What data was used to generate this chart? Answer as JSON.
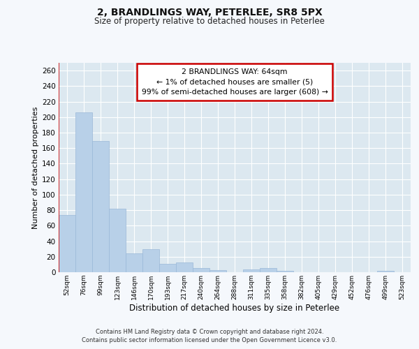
{
  "title1": "2, BRANDLINGS WAY, PETERLEE, SR8 5PX",
  "title2": "Size of property relative to detached houses in Peterlee",
  "xlabel": "Distribution of detached houses by size in Peterlee",
  "ylabel": "Number of detached properties",
  "categories": [
    "52sqm",
    "76sqm",
    "99sqm",
    "123sqm",
    "146sqm",
    "170sqm",
    "193sqm",
    "217sqm",
    "240sqm",
    "264sqm",
    "288sqm",
    "311sqm",
    "335sqm",
    "358sqm",
    "382sqm",
    "405sqm",
    "429sqm",
    "452sqm",
    "476sqm",
    "499sqm",
    "523sqm"
  ],
  "values": [
    74,
    206,
    169,
    82,
    24,
    30,
    11,
    13,
    5,
    3,
    0,
    4,
    5,
    2,
    0,
    0,
    0,
    0,
    0,
    2,
    0
  ],
  "bar_color": "#b8d0e8",
  "bar_edge_color": "#9ab8d8",
  "highlight_line_color": "#cc0000",
  "annotation_line1": "2 BRANDLINGS WAY: 64sqm",
  "annotation_line2": "← 1% of detached houses are smaller (5)",
  "annotation_line3": "99% of semi-detached houses are larger (608) →",
  "ylim": [
    0,
    270
  ],
  "yticks": [
    0,
    20,
    40,
    60,
    80,
    100,
    120,
    140,
    160,
    180,
    200,
    220,
    240,
    260
  ],
  "footer1": "Contains HM Land Registry data © Crown copyright and database right 2024.",
  "footer2": "Contains public sector information licensed under the Open Government Licence v3.0.",
  "fig_bg_color": "#f5f8fc",
  "plot_bg_color": "#dce8f0"
}
